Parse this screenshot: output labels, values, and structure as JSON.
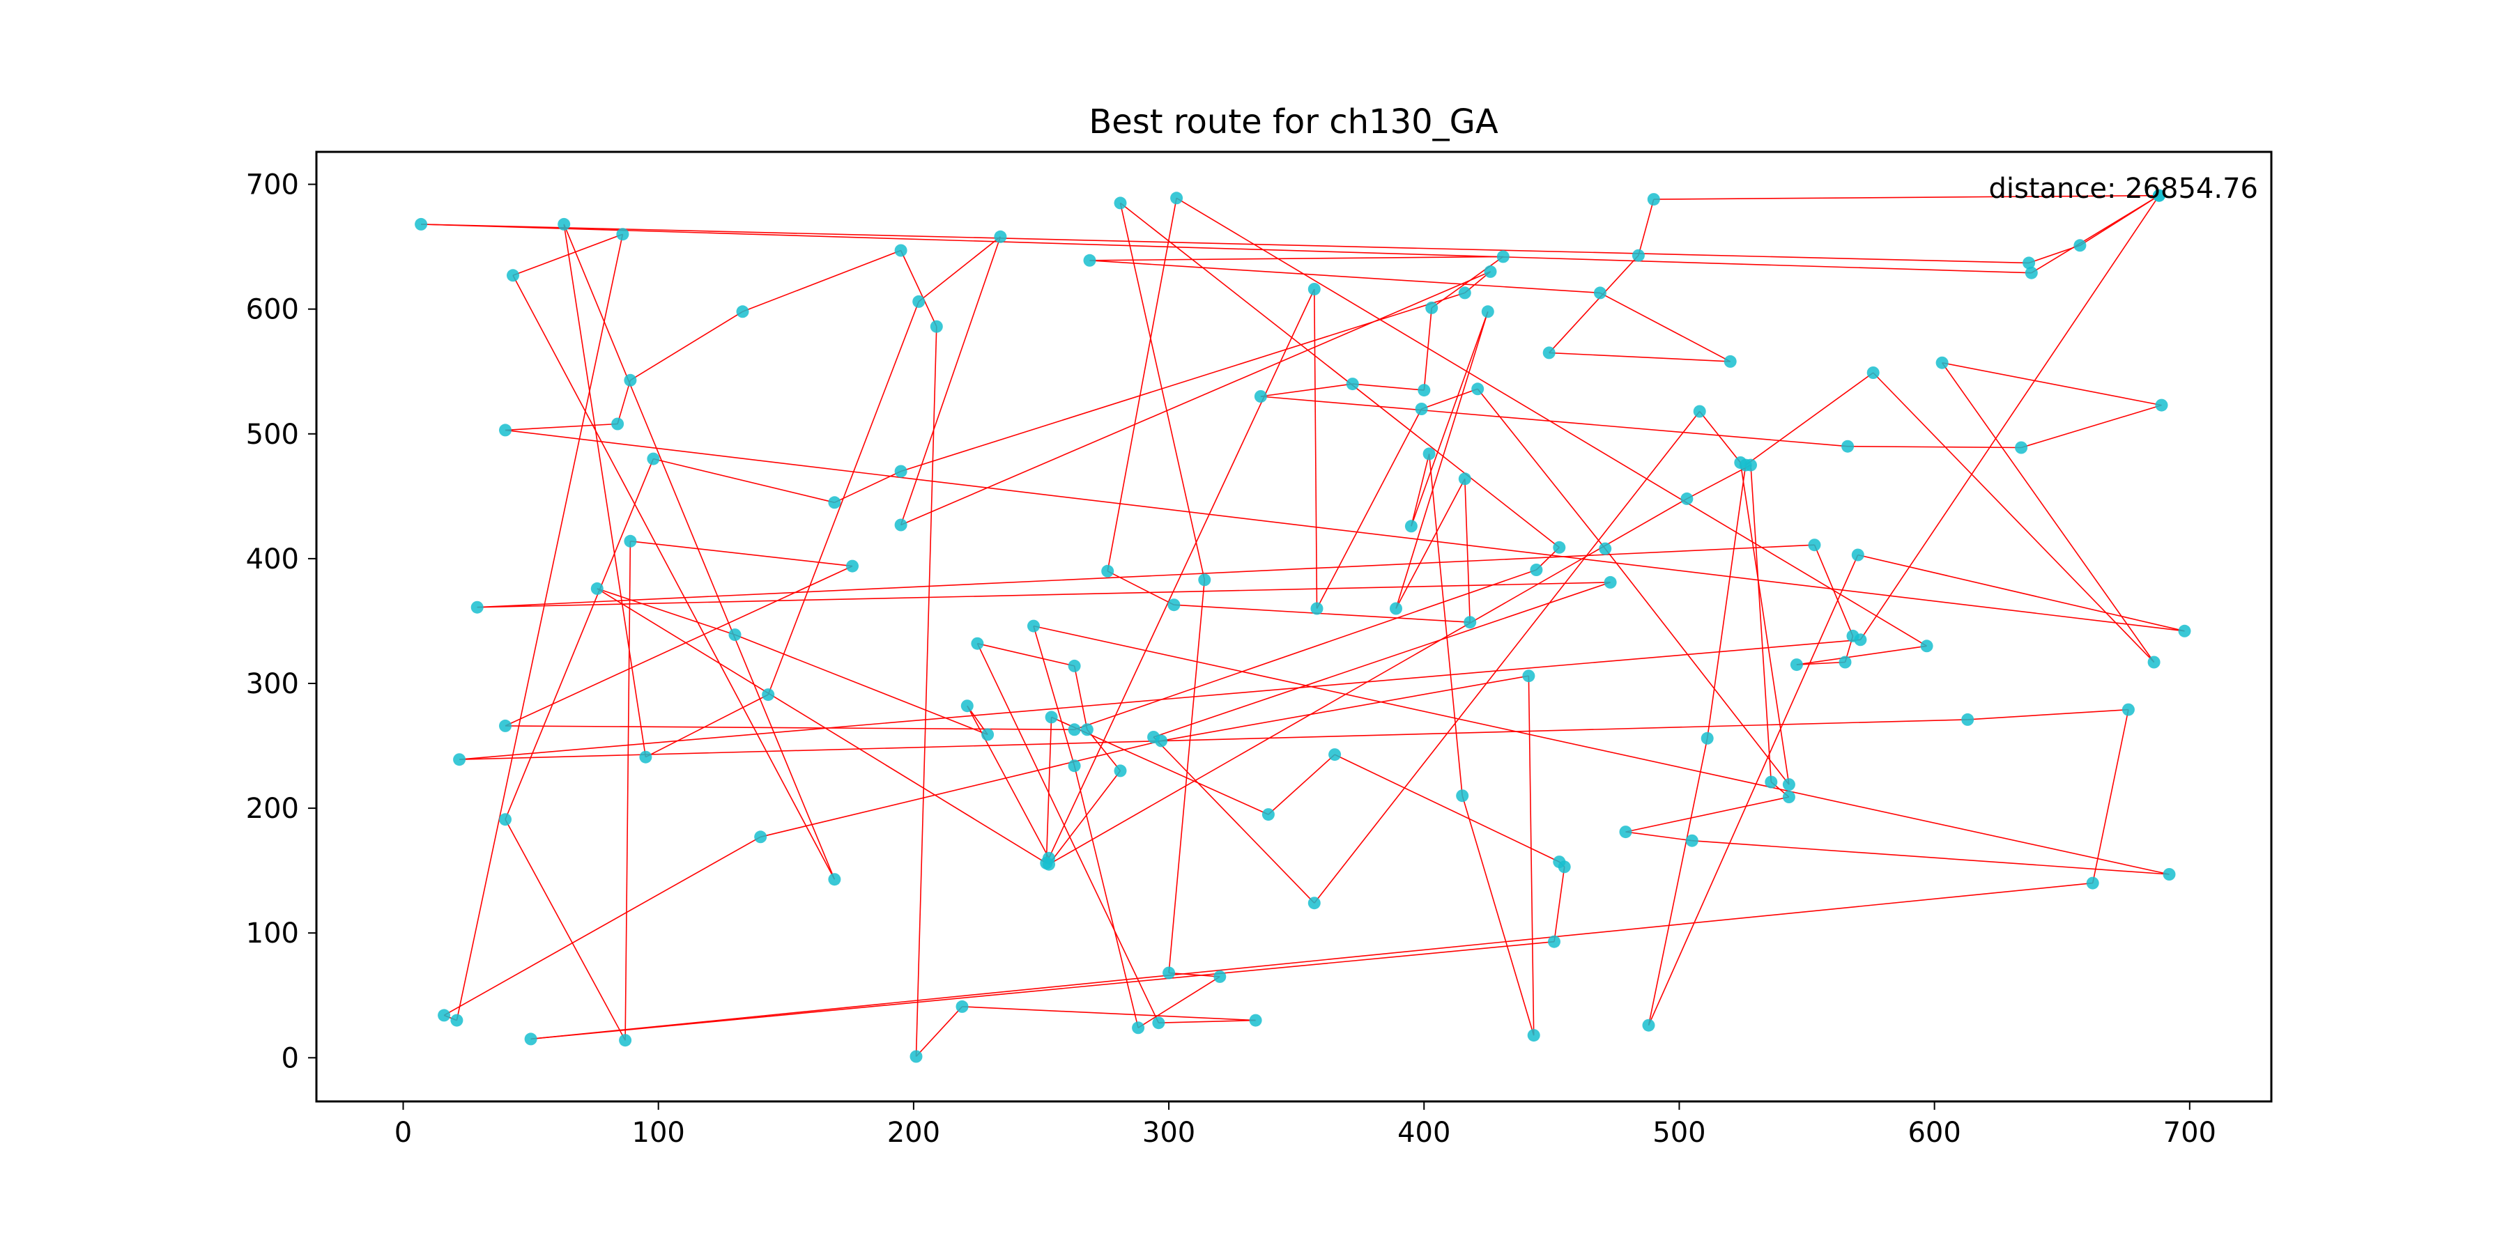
{
  "chart_data": {
    "type": "line",
    "title": "Best route for ch130_GA",
    "xlabel": "",
    "ylabel": "",
    "xlim": [
      -34,
      732
    ],
    "ylim": [
      -35,
      726
    ],
    "xticks": [
      0,
      100,
      200,
      300,
      400,
      500,
      600,
      700
    ],
    "yticks": [
      0,
      100,
      200,
      300,
      400,
      500,
      600,
      700
    ],
    "xtick_labels": [
      "0",
      "100",
      "200",
      "300",
      "400",
      "500",
      "600",
      "700"
    ],
    "ytick_labels": [
      "0",
      "100",
      "200",
      "300",
      "400",
      "500",
      "600",
      "700"
    ],
    "grid": false,
    "annotation": "distance: 26854.76",
    "route_color": "#ff0000",
    "point_color": "#17becf",
    "series": [
      {
        "x": [
          688,
          638,
          7,
          637,
          657,
          688,
          490,
          484,
          449,
          520,
          469,
          269,
          431,
          403,
          400,
          372,
          336,
          566,
          634,
          689,
          603,
          686,
          576,
          526,
          511,
          488,
          570,
          698,
          40,
          84,
          89,
          133,
          195,
          209,
          201,
          219,
          334,
          296,
          225,
          263,
          268,
          281,
          253,
          503,
          528,
          536,
          543,
          479,
          505,
          692,
          247,
          263,
          288,
          320,
          300,
          314,
          281,
          453,
          444,
          263,
          40,
          176,
          89,
          87,
          40,
          98,
          169,
          195,
          416,
          426,
          195,
          234,
          202,
          143,
          95,
          63,
          169,
          43,
          86,
          21,
          16,
          140,
          297,
          441,
          443,
          415,
          402,
          395,
          425,
          389,
          416,
          418,
          302,
          276,
          303,
          597,
          546,
          565,
          568,
          553,
          29,
          473,
          294,
          357,
          508,
          524,
          543,
          471,
          421,
          399,
          358,
          357,
          253,
          221,
          229,
          130,
          76,
          252,
          254,
          339,
          365,
          453,
          455,
          451,
          50,
          662,
          676,
          613,
          22,
          571
        ],
        "y": [
          691,
          629,
          668,
          637,
          651,
          691,
          688,
          643,
          565,
          558,
          613,
          639,
          642,
          601,
          535,
          540,
          530,
          490,
          489,
          523,
          557,
          317,
          549,
          475,
          256,
          26,
          403,
          342,
          503,
          508,
          543,
          598,
          647,
          586,
          1,
          41,
          30,
          28,
          332,
          314,
          263,
          230,
          155,
          448,
          475,
          221,
          209,
          181,
          174,
          147,
          346,
          234,
          24,
          65,
          68,
          383,
          685,
          409,
          391,
          263,
          266,
          394,
          414,
          14,
          191,
          480,
          445,
          470,
          613,
          630,
          427,
          658,
          606,
          291,
          241,
          668,
          143,
          627,
          660,
          30,
          34,
          177,
          254,
          306,
          18,
          210,
          484,
          426,
          598,
          360,
          464,
          349,
          363,
          390,
          689,
          330,
          315,
          317,
          338,
          411,
          361,
          381,
          257,
          124,
          518,
          477,
          219,
          408,
          536,
          520,
          360,
          616,
          160,
          282,
          259,
          339,
          376,
          156,
          273,
          195,
          243,
          157,
          153,
          93,
          15,
          140,
          279,
          271,
          239,
          335
        ]
      }
    ]
  }
}
